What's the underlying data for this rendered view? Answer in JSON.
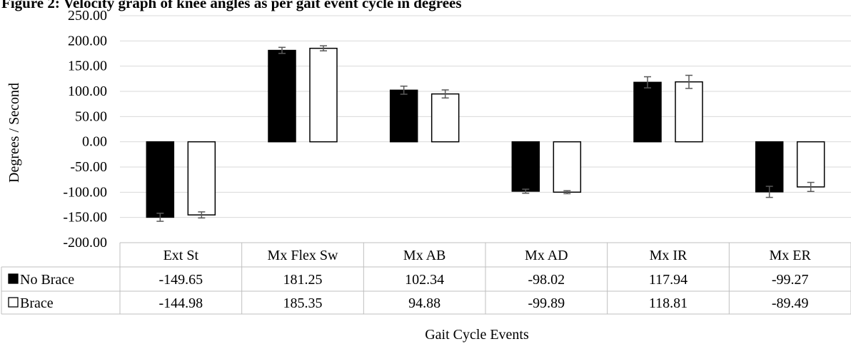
{
  "chart_data": {
    "type": "bar",
    "title": "Figure 2:  Velocity graph of knee angles as per gait event cycle in degrees",
    "xlabel": "Gait Cycle Events",
    "ylabel": "Degrees / Second",
    "ylim": [
      -200,
      250
    ],
    "ytick_step": 50,
    "grid": true,
    "legend_placement": "data-table",
    "categories": [
      "Ext St",
      "Mx Flex Sw",
      "Mx AB",
      "Mx AD",
      "Mx IR",
      "Mx ER"
    ],
    "series": [
      {
        "name": "No Brace",
        "color": "#000000",
        "values": [
          -149.65,
          181.25,
          102.34,
          -98.02,
          117.94,
          -99.27
        ],
        "error": [
          8,
          6,
          8,
          4,
          11,
          11
        ],
        "labels": [
          "-149.65",
          "181.25",
          "102.34",
          "-98.02",
          "117.94",
          "-99.27"
        ]
      },
      {
        "name": "Brace",
        "color": "#ffffff",
        "values": [
          -144.98,
          185.35,
          94.88,
          -99.89,
          118.81,
          -89.49
        ],
        "error": [
          6,
          5,
          8,
          3,
          13,
          9
        ],
        "labels": [
          "-144.98",
          "185.35",
          "94.88",
          "-99.89",
          "118.81",
          "-89.49"
        ]
      }
    ]
  },
  "colors": {
    "grid": "#d9d9d9",
    "errorbar": "#595959",
    "table_border": "#bfbfbf",
    "bar_outline": "#000000"
  }
}
